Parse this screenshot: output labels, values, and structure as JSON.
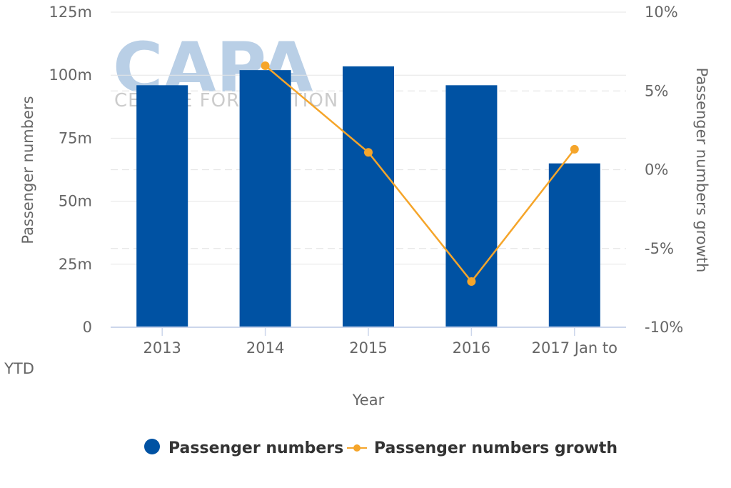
{
  "watermark": {
    "brand": "CAPA",
    "sub": "CENTRE FOR AVIATION"
  },
  "colors": {
    "bar": "#0052a3",
    "line": "#f5a52a",
    "grid": "#e6e6e6",
    "axis": "#ccd6eb",
    "text": "#666666"
  },
  "chart_data": {
    "type": "bar",
    "categories": [
      "2013",
      "2014",
      "2015",
      "2016",
      "2017 Jan to YTD"
    ],
    "xlabel": "Year",
    "ylabel": "Passenger numbers",
    "y2label": "Passenger numbers growth",
    "ylim": [
      0,
      125
    ],
    "y2lim": [
      -10,
      10
    ],
    "yticks": [
      "0",
      "25m",
      "50m",
      "75m",
      "100m",
      "125m"
    ],
    "y2ticks": [
      "-10%",
      "-5%",
      "0%",
      "5%",
      "10%"
    ],
    "series": [
      {
        "name": "Passenger numbers",
        "type": "bar",
        "axis": "left",
        "unit": "m",
        "values": [
          96,
          102,
          103.5,
          96,
          65
        ]
      },
      {
        "name": "Passenger numbers growth",
        "type": "line",
        "axis": "right",
        "unit": "%",
        "values": [
          null,
          6.6,
          1.1,
          -7.1,
          1.3
        ]
      }
    ],
    "grid": true,
    "legend": "bottom-center"
  }
}
